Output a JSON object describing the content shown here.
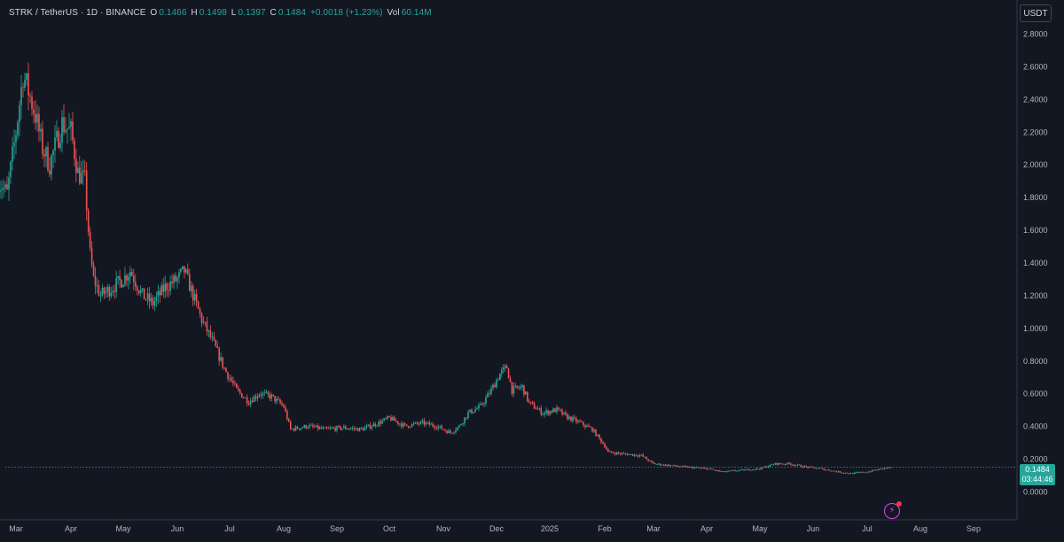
{
  "header": {
    "symbol": "STRK / TetherUS · 1D · BINANCE",
    "o_label": "O",
    "o_value": "0.1466",
    "h_label": "H",
    "h_value": "0.1498",
    "l_label": "L",
    "l_value": "0.1397",
    "c_label": "C",
    "c_value": "0.1484",
    "change": "+0.0018 (+1.23%)",
    "vol_label": "Vol",
    "vol_value": "60.14M"
  },
  "currency_button": "USDT",
  "last_price": {
    "price": "0.1484",
    "countdown": "03:44:46"
  },
  "icons": {
    "alert": "bolt-icon"
  },
  "colors": {
    "up": "#26a69a",
    "down": "#ef5350",
    "background": "#131722",
    "accent": "#e040fb"
  },
  "chart_data": {
    "type": "candlestick",
    "title": "",
    "xlabel": "",
    "ylabel": "",
    "y_ticks": [
      "2.8000",
      "2.6000",
      "2.4000",
      "2.2000",
      "2.0000",
      "1.8000",
      "1.6000",
      "1.4000",
      "1.2000",
      "1.0000",
      "0.8000",
      "0.6000",
      "0.4000",
      "0.2000",
      "0.0000"
    ],
    "x_ticks": [
      "Mar",
      "Apr",
      "May",
      "Jun",
      "Jul",
      "Aug",
      "Sep",
      "Oct",
      "Nov",
      "Dec",
      "2025",
      "Feb",
      "Mar",
      "Apr",
      "May",
      "Jun",
      "Jul",
      "Aug",
      "Sep"
    ],
    "ylim": [
      -0.12,
      3.0
    ],
    "x_axis_start": "2024-02-20",
    "x_axis_end": "2025-09-30",
    "grid": false,
    "last_price_line": 0.1484,
    "series": [
      {
        "anchors": [
          [
            "2024-02-20",
            1.9
          ],
          [
            "2024-02-25",
            1.82
          ],
          [
            "2024-03-01",
            2.2
          ],
          [
            "2024-03-05",
            2.55
          ],
          [
            "2024-03-08",
            2.45
          ],
          [
            "2024-03-12",
            2.3
          ],
          [
            "2024-03-16",
            2.1
          ],
          [
            "2024-03-20",
            2.0
          ],
          [
            "2024-03-27",
            2.25
          ],
          [
            "2024-04-01",
            2.2
          ],
          [
            "2024-04-05",
            1.95
          ],
          [
            "2024-04-09",
            1.9
          ],
          [
            "2024-04-12",
            1.45
          ],
          [
            "2024-04-14",
            1.3
          ],
          [
            "2024-04-18",
            1.2
          ],
          [
            "2024-04-25",
            1.25
          ],
          [
            "2024-05-01",
            1.3
          ],
          [
            "2024-05-05",
            1.35
          ],
          [
            "2024-05-12",
            1.2
          ],
          [
            "2024-05-18",
            1.15
          ],
          [
            "2024-05-25",
            1.25
          ],
          [
            "2024-06-01",
            1.3
          ],
          [
            "2024-06-05",
            1.35
          ],
          [
            "2024-06-10",
            1.2
          ],
          [
            "2024-06-15",
            1.05
          ],
          [
            "2024-06-22",
            0.9
          ],
          [
            "2024-06-28",
            0.75
          ],
          [
            "2024-07-05",
            0.62
          ],
          [
            "2024-07-12",
            0.55
          ],
          [
            "2024-07-18",
            0.6
          ],
          [
            "2024-07-25",
            0.58
          ],
          [
            "2024-08-01",
            0.52
          ],
          [
            "2024-08-05",
            0.38
          ],
          [
            "2024-08-15",
            0.4
          ],
          [
            "2024-08-25",
            0.38
          ],
          [
            "2024-09-05",
            0.39
          ],
          [
            "2024-09-15",
            0.38
          ],
          [
            "2024-09-25",
            0.42
          ],
          [
            "2024-10-01",
            0.45
          ],
          [
            "2024-10-10",
            0.4
          ],
          [
            "2024-10-20",
            0.42
          ],
          [
            "2024-10-28",
            0.4
          ],
          [
            "2024-11-05",
            0.36
          ],
          [
            "2024-11-10",
            0.4
          ],
          [
            "2024-11-15",
            0.48
          ],
          [
            "2024-11-22",
            0.52
          ],
          [
            "2024-11-28",
            0.62
          ],
          [
            "2024-12-03",
            0.72
          ],
          [
            "2024-12-07",
            0.76
          ],
          [
            "2024-12-10",
            0.62
          ],
          [
            "2024-12-16",
            0.64
          ],
          [
            "2024-12-20",
            0.54
          ],
          [
            "2024-12-28",
            0.48
          ],
          [
            "2025-01-05",
            0.5
          ],
          [
            "2025-01-10",
            0.46
          ],
          [
            "2025-01-18",
            0.42
          ],
          [
            "2025-01-25",
            0.38
          ],
          [
            "2025-02-01",
            0.28
          ],
          [
            "2025-02-03",
            0.24
          ],
          [
            "2025-02-12",
            0.23
          ],
          [
            "2025-02-22",
            0.22
          ],
          [
            "2025-03-01",
            0.17
          ],
          [
            "2025-03-10",
            0.16
          ],
          [
            "2025-03-20",
            0.15
          ],
          [
            "2025-04-01",
            0.14
          ],
          [
            "2025-04-10",
            0.12
          ],
          [
            "2025-04-20",
            0.13
          ],
          [
            "2025-05-01",
            0.14
          ],
          [
            "2025-05-10",
            0.17
          ],
          [
            "2025-05-18",
            0.17
          ],
          [
            "2025-05-28",
            0.15
          ],
          [
            "2025-06-05",
            0.14
          ],
          [
            "2025-06-15",
            0.12
          ],
          [
            "2025-06-22",
            0.11
          ],
          [
            "2025-07-01",
            0.12
          ],
          [
            "2025-07-10",
            0.14
          ],
          [
            "2025-07-15",
            0.1484
          ]
        ]
      }
    ]
  }
}
